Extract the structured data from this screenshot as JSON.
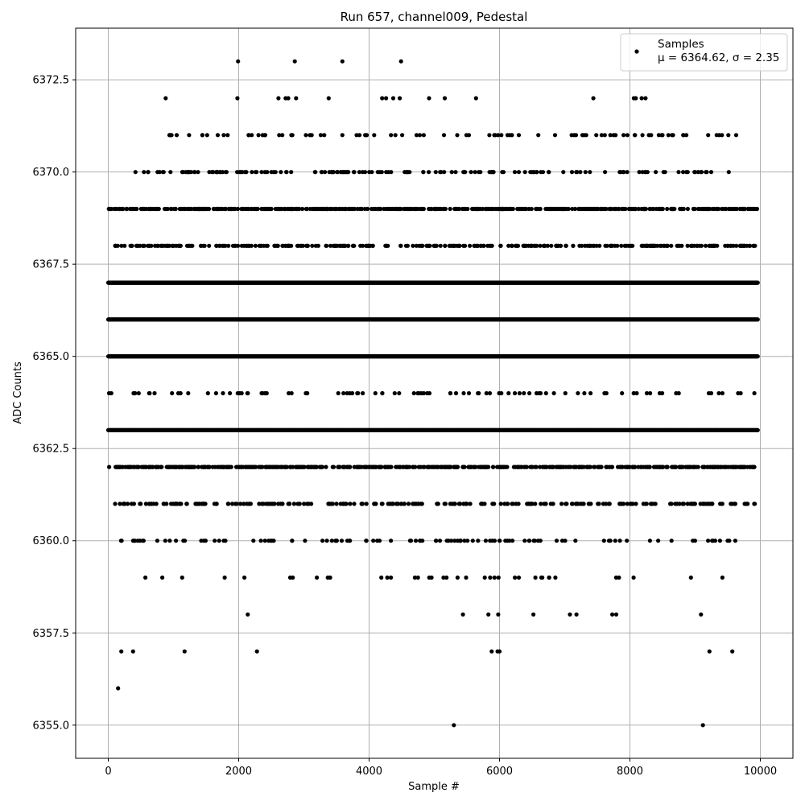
{
  "chart_data": {
    "type": "scatter",
    "title": "Run 657, channel009, Pedestal",
    "xlabel": "Sample #",
    "ylabel": "ADC Counts",
    "xlim": [
      -500,
      10500
    ],
    "ylim": [
      6354.1,
      6373.9
    ],
    "xticks": [
      0,
      2000,
      4000,
      6000,
      8000,
      10000
    ],
    "yticks": [
      6355.0,
      6357.5,
      6360.0,
      6362.5,
      6365.0,
      6367.5,
      6370.0,
      6372.5
    ],
    "xtick_labels": [
      "0",
      "2000",
      "4000",
      "6000",
      "8000",
      "10000"
    ],
    "ytick_labels": [
      "6355.0",
      "6357.5",
      "6360.0",
      "6362.5",
      "6365.0",
      "6367.5",
      "6370.0",
      "6372.5"
    ],
    "grid": true,
    "marker_color": "#000000",
    "legend": {
      "placement": "top-right",
      "label": "Samples",
      "stats": "μ = 6364.62, σ = 2.35"
    },
    "series": [
      {
        "name": "Samples",
        "points": [
          {
            "x": 150,
            "y": 6356
          },
          {
            "x": 200,
            "y": 6357
          },
          {
            "x": 380,
            "y": 6357
          },
          {
            "x": 1170,
            "y": 6357
          },
          {
            "x": 2280,
            "y": 6357
          },
          {
            "x": 5880,
            "y": 6357
          },
          {
            "x": 5970,
            "y": 6357
          },
          {
            "x": 6000,
            "y": 6357
          },
          {
            "x": 9220,
            "y": 6357
          },
          {
            "x": 9570,
            "y": 6357
          },
          {
            "x": 5300,
            "y": 6355
          },
          {
            "x": 9120,
            "y": 6355
          },
          {
            "x": 2140,
            "y": 6358
          },
          {
            "x": 5440,
            "y": 6358
          },
          {
            "x": 5830,
            "y": 6358
          },
          {
            "x": 5980,
            "y": 6358
          },
          {
            "x": 6520,
            "y": 6358
          },
          {
            "x": 7080,
            "y": 6358
          },
          {
            "x": 7180,
            "y": 6358
          },
          {
            "x": 7730,
            "y": 6358
          },
          {
            "x": 7790,
            "y": 6358
          },
          {
            "x": 9090,
            "y": 6358
          },
          {
            "x": 880,
            "y": 6372
          },
          {
            "x": 1980,
            "y": 6372
          },
          {
            "x": 2610,
            "y": 6372
          },
          {
            "x": 2720,
            "y": 6372
          },
          {
            "x": 2760,
            "y": 6372
          },
          {
            "x": 2880,
            "y": 6372
          },
          {
            "x": 3380,
            "y": 6372
          },
          {
            "x": 4200,
            "y": 6372
          },
          {
            "x": 4260,
            "y": 6372
          },
          {
            "x": 4370,
            "y": 6372
          },
          {
            "x": 4470,
            "y": 6372
          },
          {
            "x": 4920,
            "y": 6372
          },
          {
            "x": 5160,
            "y": 6372
          },
          {
            "x": 5640,
            "y": 6372
          },
          {
            "x": 7440,
            "y": 6372
          },
          {
            "x": 8060,
            "y": 6372
          },
          {
            "x": 8090,
            "y": 6372
          },
          {
            "x": 8180,
            "y": 6372
          },
          {
            "x": 8240,
            "y": 6372
          },
          {
            "x": 1990,
            "y": 6373
          },
          {
            "x": 2860,
            "y": 6373
          },
          {
            "x": 3590,
            "y": 6373
          },
          {
            "x": 4490,
            "y": 6373
          }
        ],
        "band_levels": [
          {
            "y": 6359,
            "count": 38,
            "range": [
              0,
              9620
            ]
          },
          {
            "y": 6360,
            "count": 110,
            "range": [
              0,
              9640
            ]
          },
          {
            "y": 6361,
            "count": 260,
            "range": [
              100,
              9960
            ]
          },
          {
            "y": 6362,
            "count": 620,
            "range": [
              0,
              9960
            ]
          },
          {
            "y": 6363,
            "count": 1500,
            "range": [
              0,
              9960
            ]
          },
          {
            "y": 6364,
            "count": 95,
            "range": [
              0,
              9960
            ]
          },
          {
            "y": 6365,
            "count": 1500,
            "range": [
              0,
              9960
            ]
          },
          {
            "y": 6366,
            "count": 1500,
            "range": [
              0,
              9960
            ]
          },
          {
            "y": 6367,
            "count": 1500,
            "range": [
              0,
              9960
            ]
          },
          {
            "y": 6368,
            "count": 330,
            "range": [
              100,
              9960
            ]
          },
          {
            "y": 6369,
            "count": 520,
            "range": [
              0,
              9960
            ]
          },
          {
            "y": 6370,
            "count": 160,
            "range": [
              380,
              9650
            ]
          },
          {
            "y": 6371,
            "count": 90,
            "range": [
              880,
              9680
            ]
          }
        ]
      }
    ]
  }
}
